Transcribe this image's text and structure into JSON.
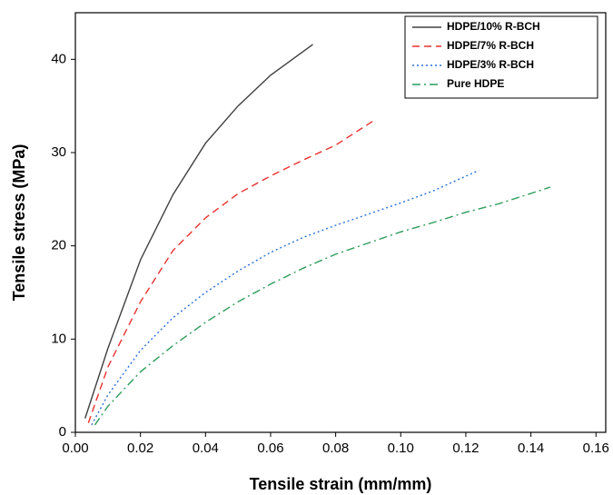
{
  "chart_data": {
    "type": "line",
    "xlabel": "Tensile strain (mm/mm)",
    "ylabel": "Tensile stress (MPa)",
    "xlim": [
      0,
      0.163
    ],
    "ylim": [
      0,
      45
    ],
    "xticks": [
      {
        "value": 0,
        "label": "0.00"
      },
      {
        "value": 0.02,
        "label": "0.02"
      },
      {
        "value": 0.04,
        "label": "0.04"
      },
      {
        "value": 0.06,
        "label": "0.06"
      },
      {
        "value": 0.08,
        "label": "0.08"
      },
      {
        "value": 0.1,
        "label": "0.10"
      },
      {
        "value": 0.12,
        "label": "0.12"
      },
      {
        "value": 0.14,
        "label": "0.14"
      },
      {
        "value": 0.16,
        "label": "0.16"
      }
    ],
    "yticks": [
      0,
      10,
      20,
      30,
      40
    ],
    "legend": "top-right",
    "series": [
      {
        "name": "HDPE/10% R-BCH",
        "color": "#404040",
        "dash": "solid",
        "x": [
          0.003,
          0.01,
          0.02,
          0.03,
          0.04,
          0.05,
          0.06,
          0.073
        ],
        "values": [
          1.5,
          9,
          18.5,
          25.5,
          31,
          35,
          38.3,
          41.6
        ]
      },
      {
        "name": "HDPE/7% R-BCH",
        "color": "#e8312f",
        "dash": "dashed",
        "x": [
          0.004,
          0.01,
          0.02,
          0.03,
          0.04,
          0.05,
          0.06,
          0.07,
          0.08,
          0.092
        ],
        "values": [
          1,
          7,
          14,
          19.5,
          23,
          25.6,
          27.5,
          29.2,
          30.8,
          33.5
        ]
      },
      {
        "name": "HDPE/3% R-BCH",
        "color": "#2a6fd6",
        "dash": "dotted",
        "x": [
          0.005,
          0.01,
          0.02,
          0.03,
          0.04,
          0.05,
          0.06,
          0.07,
          0.08,
          0.09,
          0.1,
          0.11,
          0.124
        ],
        "values": [
          0.8,
          4,
          8.8,
          12.3,
          15,
          17.3,
          19.3,
          20.9,
          22.2,
          23.4,
          24.6,
          25.9,
          28.1
        ]
      },
      {
        "name": "Pure HDPE",
        "color": "#2e9c5a",
        "dash": "dashdot",
        "x": [
          0.006,
          0.01,
          0.02,
          0.03,
          0.04,
          0.05,
          0.06,
          0.07,
          0.08,
          0.09,
          0.1,
          0.11,
          0.12,
          0.13,
          0.146
        ],
        "values": [
          0.8,
          2.8,
          6.5,
          9.3,
          11.8,
          14,
          15.9,
          17.6,
          19.1,
          20.3,
          21.5,
          22.5,
          23.6,
          24.5,
          26.3
        ]
      }
    ]
  }
}
